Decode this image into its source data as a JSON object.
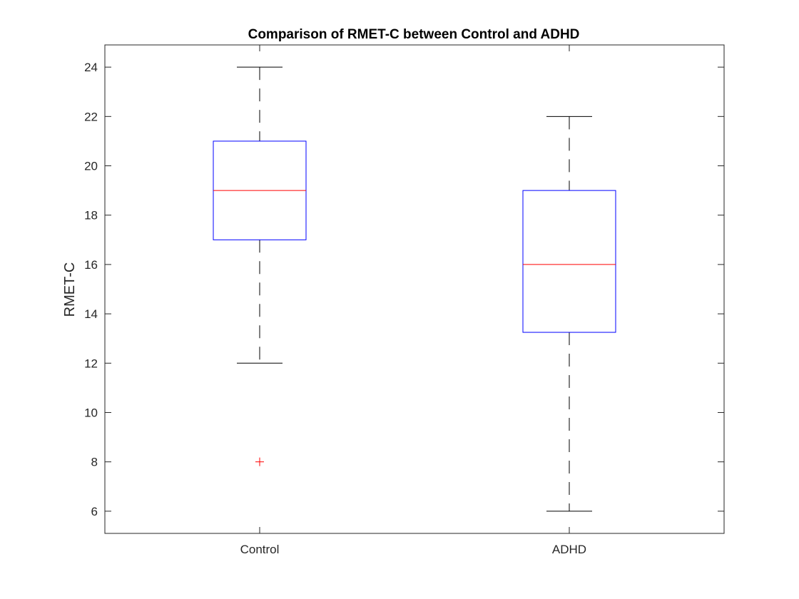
{
  "chart_data": {
    "type": "box",
    "title": "Comparison of RMET-C between Control and ADHD",
    "xlabel": "",
    "ylabel": "RMET-C",
    "ylim": [
      5.1,
      24.9
    ],
    "yticks": [
      6,
      8,
      10,
      12,
      14,
      16,
      18,
      20,
      22,
      24
    ],
    "categories": [
      "Control",
      "ADHD"
    ],
    "boxes": [
      {
        "category": "Control",
        "whisker_low": 12,
        "q1": 17,
        "median": 19,
        "q3": 21,
        "whisker_high": 24,
        "outliers": [
          8
        ]
      },
      {
        "category": "ADHD",
        "whisker_low": 6,
        "q1": 13.25,
        "median": 16,
        "q3": 19,
        "whisker_high": 22,
        "outliers": []
      }
    ],
    "grid": false,
    "colors": {
      "box": "#0000ff",
      "median": "#ff0000",
      "whisker": "#000000",
      "outlier": "#ff0000",
      "axes": "#262626"
    }
  }
}
